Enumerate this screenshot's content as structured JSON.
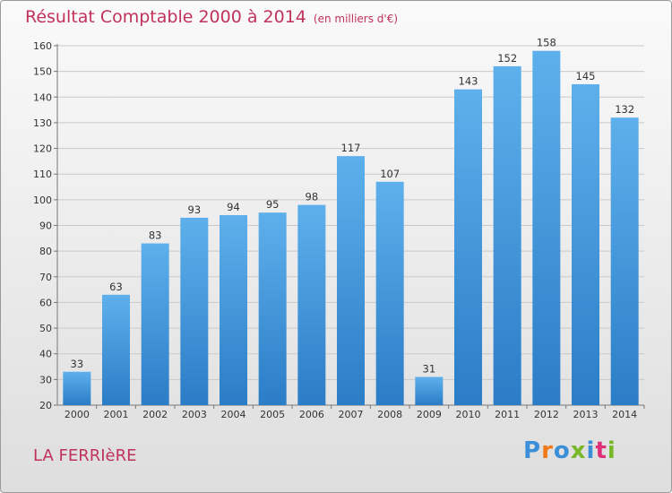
{
  "title": "Résultat Comptable 2000 à 2014",
  "subtitle": "(en milliers d'€)",
  "town": "LA FERRIèRE",
  "logo": {
    "letters": [
      "P",
      "r",
      "o",
      "x",
      "i",
      "t",
      "i"
    ],
    "colors": [
      "#3a8fd8",
      "#f07a1a",
      "#3a8fd8",
      "#78b828",
      "#3a8fd8",
      "#e0307a",
      "#78b828"
    ]
  },
  "colors": {
    "bar_light": "#5eb0ec",
    "bar_dark": "#2a7dc6",
    "title": "#c0325a"
  },
  "chart_data": {
    "type": "bar",
    "title": "Résultat Comptable 2000 à 2014",
    "subtitle": "(en milliers d'€)",
    "categories": [
      "2000",
      "2001",
      "2002",
      "2003",
      "2004",
      "2005",
      "2006",
      "2007",
      "2008",
      "2009",
      "2010",
      "2011",
      "2012",
      "2013",
      "2014"
    ],
    "values": [
      33,
      63,
      83,
      93,
      94,
      95,
      98,
      117,
      107,
      31,
      143,
      152,
      158,
      145,
      132
    ],
    "ylim": [
      20,
      160
    ],
    "yticks": [
      20,
      30,
      40,
      50,
      60,
      70,
      80,
      90,
      100,
      110,
      120,
      130,
      140,
      150,
      160
    ],
    "grid": true,
    "data_labels": true
  }
}
